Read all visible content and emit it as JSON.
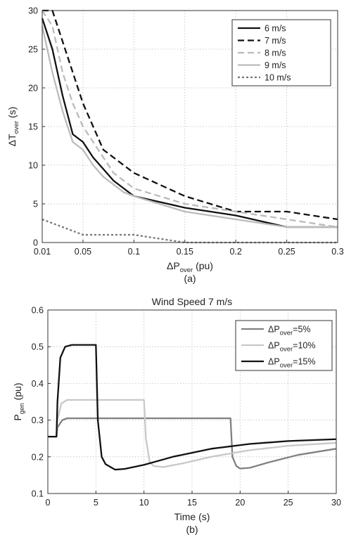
{
  "chart_data": [
    {
      "type": "line",
      "panel_caption": "(a)",
      "title": "",
      "xlabel": {
        "main": "ΔP",
        "sub": "over",
        "rest": " (pu)"
      },
      "ylabel": {
        "main": "ΔT",
        "sub": "over",
        "rest": " (s)"
      },
      "xlim": [
        0.01,
        0.3
      ],
      "ylim": [
        0,
        30
      ],
      "xticks": [
        0.01,
        0.05,
        0.1,
        0.15,
        0.2,
        0.25,
        0.3
      ],
      "xtick_labels": [
        "0.01",
        "0.05",
        "0.1",
        "0.15",
        "0.2",
        "0.25",
        "0.3"
      ],
      "yticks": [
        0,
        5,
        10,
        15,
        20,
        25,
        30
      ],
      "ytick_labels": [
        "0",
        "5",
        "10",
        "15",
        "20",
        "25",
        "30"
      ],
      "grid": true,
      "legend_position": "top-right",
      "series": [
        {
          "name": "6 m/s",
          "color": "#111111",
          "dash": "solid",
          "x": [
            0.01,
            0.02,
            0.03,
            0.04,
            0.05,
            0.06,
            0.07,
            0.08,
            0.09,
            0.1,
            0.15,
            0.2,
            0.25,
            0.3
          ],
          "y": [
            29,
            25,
            19,
            14,
            13,
            11,
            9.5,
            8,
            7,
            6,
            4.5,
            3.5,
            2,
            2
          ]
        },
        {
          "name": "7 m/s",
          "color": "#111111",
          "dash": "dashed",
          "x": [
            0.01,
            0.02,
            0.03,
            0.04,
            0.05,
            0.06,
            0.07,
            0.08,
            0.09,
            0.1,
            0.15,
            0.2,
            0.25,
            0.3
          ],
          "y": [
            30,
            30,
            26,
            22,
            18,
            15,
            12,
            11,
            10,
            9,
            6,
            4,
            4,
            3
          ]
        },
        {
          "name": "8 m/s",
          "color": "#bbbbbb",
          "dash": "dashed",
          "x": [
            0.01,
            0.02,
            0.03,
            0.04,
            0.05,
            0.06,
            0.07,
            0.08,
            0.09,
            0.1,
            0.15,
            0.2,
            0.25,
            0.3
          ],
          "y": [
            30,
            28,
            22,
            18,
            15,
            13,
            11,
            9,
            8,
            7,
            5,
            4,
            3,
            2
          ]
        },
        {
          "name": "9 m/s",
          "color": "#bbbbbb",
          "dash": "solid",
          "x": [
            0.01,
            0.02,
            0.03,
            0.04,
            0.05,
            0.06,
            0.07,
            0.08,
            0.09,
            0.1,
            0.15,
            0.2,
            0.25,
            0.3
          ],
          "y": [
            28,
            22,
            17,
            13,
            12,
            10,
            8.5,
            7.5,
            6.5,
            6,
            4,
            3,
            2,
            2
          ]
        },
        {
          "name": "10 m/s",
          "color": "#777777",
          "dash": "dotted",
          "x": [
            0.01,
            0.03,
            0.05,
            0.07,
            0.1,
            0.15,
            0.2,
            0.25,
            0.3
          ],
          "y": [
            3,
            2,
            1,
            1,
            1,
            0,
            0,
            0,
            0
          ]
        }
      ]
    },
    {
      "type": "line",
      "panel_caption": "(b)",
      "title": "Wind Speed 7 m/s",
      "xlabel": {
        "main": "Time (s)",
        "sub": "",
        "rest": ""
      },
      "ylabel": {
        "main": "P",
        "sub": "gen",
        "rest": " (pu)"
      },
      "xlim": [
        0,
        30
      ],
      "ylim": [
        0.1,
        0.6
      ],
      "xticks": [
        0,
        5,
        10,
        15,
        20,
        25,
        30
      ],
      "xtick_labels": [
        "0",
        "5",
        "10",
        "15",
        "20",
        "25",
        "30"
      ],
      "yticks": [
        0.1,
        0.2,
        0.3,
        0.4,
        0.5,
        0.6
      ],
      "ytick_labels": [
        "0.1",
        "0.2",
        "0.3",
        "0.4",
        "0.5",
        "0.6"
      ],
      "grid": true,
      "legend_position": "top-right",
      "series": [
        {
          "name_main": "ΔP",
          "name_sub": "over",
          "name_rest": "=5%",
          "color": "#808080",
          "dash": "solid",
          "x": [
            0,
            0.9,
            1.0,
            1.5,
            2.0,
            19.0,
            19.2,
            19.6,
            20.0,
            21.0,
            23.0,
            26.0,
            30.0
          ],
          "y": [
            0.255,
            0.255,
            0.28,
            0.3,
            0.305,
            0.305,
            0.2,
            0.175,
            0.168,
            0.17,
            0.185,
            0.205,
            0.222
          ]
        },
        {
          "name_main": "ΔP",
          "name_sub": "over",
          "name_rest": "=10%",
          "color": "#c8c8c8",
          "dash": "solid",
          "x": [
            0,
            0.9,
            1.0,
            1.4,
            2.0,
            10.0,
            10.2,
            10.6,
            11.0,
            12.0,
            14.0,
            17.0,
            21.0,
            25.0,
            30.0
          ],
          "y": [
            0.255,
            0.255,
            0.3,
            0.345,
            0.355,
            0.355,
            0.25,
            0.185,
            0.175,
            0.172,
            0.182,
            0.2,
            0.218,
            0.23,
            0.238
          ]
        },
        {
          "name_main": "ΔP",
          "name_sub": "over",
          "name_rest": "=15%",
          "color": "#111111",
          "dash": "solid",
          "x": [
            0,
            0.9,
            1.0,
            1.3,
            1.8,
            2.5,
            5.0,
            5.2,
            5.6,
            6.0,
            7.0,
            8.0,
            10.0,
            13.0,
            17.0,
            21.0,
            25.0,
            30.0
          ],
          "y": [
            0.255,
            0.255,
            0.35,
            0.47,
            0.5,
            0.505,
            0.505,
            0.3,
            0.2,
            0.18,
            0.165,
            0.167,
            0.178,
            0.2,
            0.222,
            0.235,
            0.243,
            0.248
          ]
        }
      ]
    }
  ]
}
